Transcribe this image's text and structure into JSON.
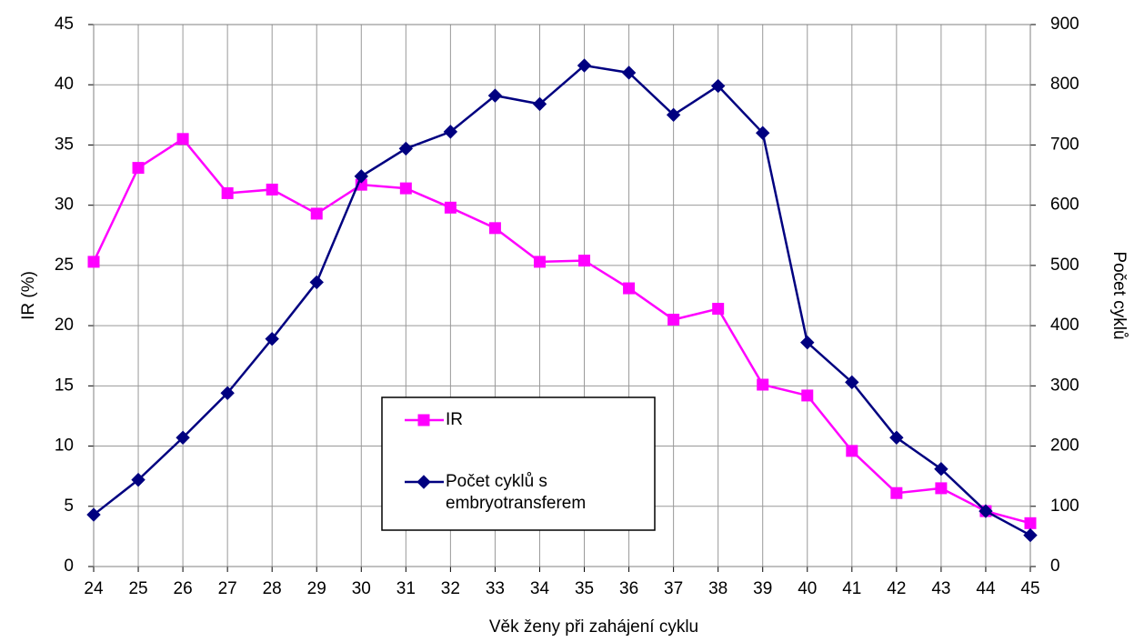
{
  "chart_data": {
    "type": "line",
    "x_label": "Věk ženy při zahájení cyklu",
    "y_label": "IR (%)",
    "y2_label": "Počet cyklů",
    "categories": [
      "24",
      "25",
      "26",
      "27",
      "28",
      "29",
      "30",
      "31",
      "32",
      "33",
      "34",
      "35",
      "36",
      "37",
      "38",
      "39",
      "40",
      "41",
      "42",
      "43",
      "44",
      "45"
    ],
    "series": [
      {
        "name": "IR",
        "color": "#ff00ff",
        "marker": "square",
        "values": [
          25.3,
          33.1,
          35.5,
          31.0,
          31.3,
          29.3,
          31.7,
          31.4,
          29.8,
          28.1,
          25.3,
          25.4,
          23.1,
          20.5,
          21.4,
          15.1,
          14.2,
          9.6,
          6.1,
          6.5,
          4.6,
          3.6
        ]
      },
      {
        "name": "Počet cyklů s embryotransferem",
        "color": "#000080",
        "marker": "diamond",
        "axis": "y2",
        "values": [
          86,
          144,
          214,
          288,
          378,
          472,
          648,
          694,
          722,
          782,
          768,
          832,
          820,
          750,
          798,
          720,
          372,
          306,
          214,
          162,
          92,
          52
        ]
      }
    ],
    "ylim": [
      0,
      45
    ],
    "yticks": [
      0,
      5,
      10,
      15,
      20,
      25,
      30,
      35,
      40,
      45
    ],
    "y2lim": [
      0,
      900
    ],
    "y2ticks": [
      0,
      100,
      200,
      300,
      400,
      500,
      600,
      700,
      800,
      900
    ],
    "grid": true
  }
}
